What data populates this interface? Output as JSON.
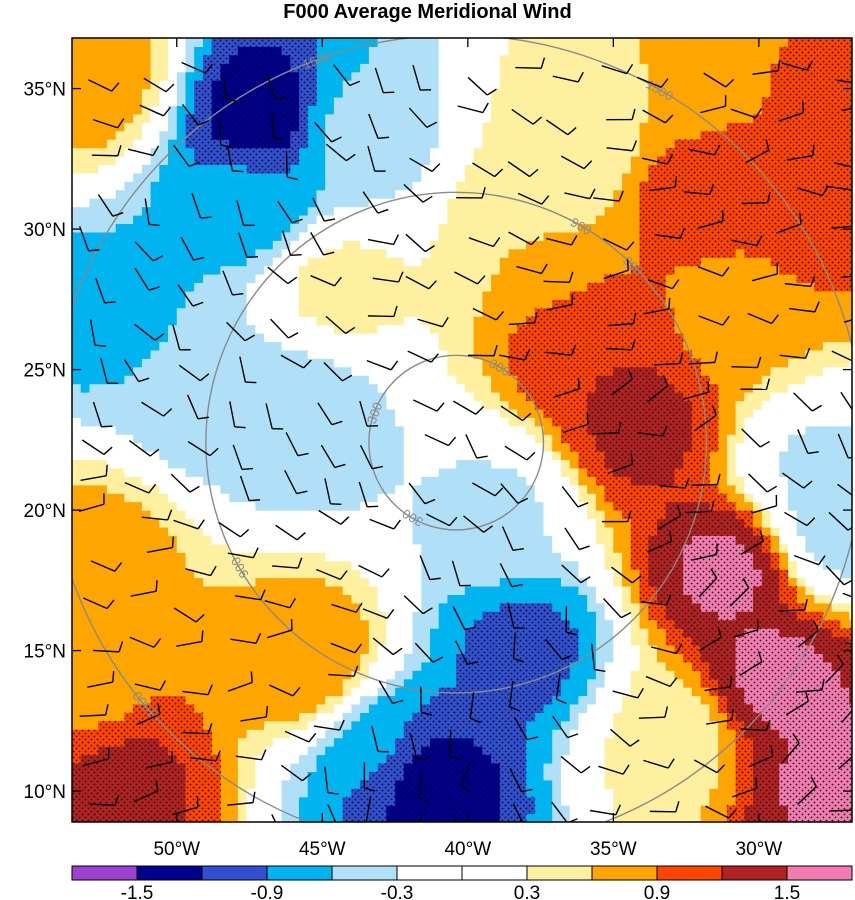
{
  "chart_data": {
    "type": "heatmap",
    "title": "F000 Average Meridional Wind",
    "x_axis": {
      "ticks": [
        {
          "value": -50,
          "label": "50°W"
        },
        {
          "value": -45,
          "label": "45°W"
        },
        {
          "value": -40,
          "label": "40°W"
        },
        {
          "value": -35,
          "label": "35°W"
        },
        {
          "value": -30,
          "label": "30°W"
        }
      ],
      "range": [
        -53.6,
        -26.8
      ]
    },
    "y_axis": {
      "ticks": [
        {
          "value": 10,
          "label": "10°N"
        },
        {
          "value": 15,
          "label": "15°N"
        },
        {
          "value": 20,
          "label": "20°N"
        },
        {
          "value": 25,
          "label": "25°N"
        },
        {
          "value": 30,
          "label": "30°N"
        },
        {
          "value": 35,
          "label": "35°N"
        }
      ],
      "range": [
        8.9,
        36.8
      ]
    },
    "colorbar": {
      "colors": [
        "#a040d0",
        "#000090",
        "#3050d0",
        "#00b4f0",
        "#b0e0f8",
        "#ffffff",
        "#ffffff",
        "#fff0a0",
        "#ffa500",
        "#ff4500",
        "#b22222",
        "#f27cb0"
      ],
      "boundaries": [
        -1.5,
        -1.2,
        -0.9,
        -0.6,
        -0.3,
        0,
        0.3,
        0.6,
        0.9,
        1.2,
        1.5
      ],
      "labeled_values": [
        "-1.5",
        "-0.9",
        "-0.3",
        "0.3",
        "0.9",
        "1.5"
      ]
    },
    "range_rings": {
      "center": {
        "lon": -40.4,
        "lat": 22.4
      },
      "rings": [
        {
          "radius_label": "300",
          "lon_radius": 3.0
        },
        {
          "radius_label": "900",
          "lon_radius": 8.6
        },
        {
          "radius_label": "1500",
          "lon_radius": 14.0
        }
      ]
    },
    "features": [
      {
        "lon": -47.0,
        "lat": 34.0,
        "value": -1.4
      },
      {
        "lon": -47.5,
        "lat": 31.0,
        "value": -0.8
      },
      {
        "lon": -44.0,
        "lat": 33.5,
        "value": -0.5
      },
      {
        "lon": -52.5,
        "lat": 27.0,
        "value": -0.7
      },
      {
        "lon": -49.0,
        "lat": 24.0,
        "value": -0.5
      },
      {
        "lon": -46.0,
        "lat": 23.5,
        "value": -0.6
      },
      {
        "lon": -39.0,
        "lat": 20.0,
        "value": -0.35
      },
      {
        "lon": -38.0,
        "lat": 15.0,
        "value": -1.0
      },
      {
        "lon": -41.5,
        "lat": 10.5,
        "value": -1.4
      },
      {
        "lon": -43.0,
        "lat": 11.5,
        "value": -0.8
      },
      {
        "lon": -27.5,
        "lat": 19.5,
        "value": -0.5
      },
      {
        "lon": -28.0,
        "lat": 21.5,
        "value": -0.35
      },
      {
        "lon": -34.0,
        "lat": 23.0,
        "value": 1.3
      },
      {
        "lon": -35.5,
        "lat": 25.5,
        "value": 1.2
      },
      {
        "lon": -31.0,
        "lat": 18.0,
        "value": 1.6
      },
      {
        "lon": -29.5,
        "lat": 14.0,
        "value": 1.6
      },
      {
        "lon": -27.5,
        "lat": 10.5,
        "value": 1.55
      },
      {
        "lon": -32.0,
        "lat": 31.5,
        "value": 1.2
      },
      {
        "lon": -27.5,
        "lat": 34.5,
        "value": 0.95
      },
      {
        "lon": -28.5,
        "lat": 30.0,
        "value": 1.0
      },
      {
        "lon": -30.5,
        "lat": 27.0,
        "value": 0.7
      },
      {
        "lon": -33.0,
        "lat": 35.0,
        "value": 0.6
      },
      {
        "lon": -36.0,
        "lat": 33.0,
        "value": 0.4
      },
      {
        "lon": -52.0,
        "lat": 10.5,
        "value": 1.3
      },
      {
        "lon": -53.0,
        "lat": 13.5,
        "value": 0.8
      },
      {
        "lon": -52.5,
        "lat": 18.5,
        "value": 0.7
      },
      {
        "lon": -45.5,
        "lat": 14.5,
        "value": 0.9
      },
      {
        "lon": -53.0,
        "lat": 35.5,
        "value": 0.8
      },
      {
        "lon": -37.5,
        "lat": 30.0,
        "value": 0.6
      },
      {
        "lon": -44.5,
        "lat": 28.0,
        "value": 0.4
      },
      {
        "lon": -33.0,
        "lat": 12.0,
        "value": 0.4
      }
    ]
  }
}
